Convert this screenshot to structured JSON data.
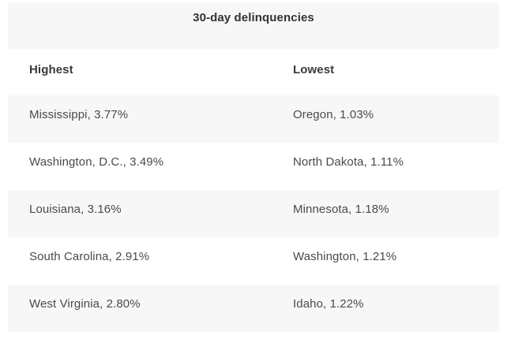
{
  "table": {
    "title": "30-day delinquencies",
    "columns": [
      {
        "label": "Highest"
      },
      {
        "label": "Lowest"
      }
    ],
    "rows": [
      {
        "highest": "Mississippi, 3.77%",
        "lowest": "Oregon, 1.03%"
      },
      {
        "highest": "Washington, D.C., 3.49%",
        "lowest": "North Dakota, 1.11%"
      },
      {
        "highest": "Louisiana, 3.16%",
        "lowest": "Minnesota, 1.18%"
      },
      {
        "highest": "South Carolina, 2.91%",
        "lowest": "Washington, 1.21%"
      },
      {
        "highest": "West Virginia, 2.80%",
        "lowest": "Idaho, 1.22%"
      }
    ]
  },
  "chart_data": {
    "type": "table",
    "title": "30-day delinquencies",
    "columns": [
      "Highest",
      "Lowest"
    ],
    "rows": [
      [
        "Mississippi, 3.77%",
        "Oregon, 1.03%"
      ],
      [
        "Washington, D.C., 3.49%",
        "North Dakota, 1.11%"
      ],
      [
        "Louisiana, 3.16%",
        "Minnesota, 1.18%"
      ],
      [
        "South Carolina, 2.91%",
        "Washington, 1.21%"
      ],
      [
        "West Virginia, 2.80%",
        "Idaho, 1.22%"
      ]
    ],
    "highest_series": [
      {
        "state": "Mississippi",
        "delinquency_pct": 3.77
      },
      {
        "state": "Washington, D.C.",
        "delinquency_pct": 3.49
      },
      {
        "state": "Louisiana",
        "delinquency_pct": 3.16
      },
      {
        "state": "South Carolina",
        "delinquency_pct": 2.91
      },
      {
        "state": "West Virginia",
        "delinquency_pct": 2.8
      }
    ],
    "lowest_series": [
      {
        "state": "Oregon",
        "delinquency_pct": 1.03
      },
      {
        "state": "North Dakota",
        "delinquency_pct": 1.11
      },
      {
        "state": "Minnesota",
        "delinquency_pct": 1.18
      },
      {
        "state": "Washington",
        "delinquency_pct": 1.21
      },
      {
        "state": "Idaho",
        "delinquency_pct": 1.22
      }
    ],
    "layout": {
      "striped_rows": true,
      "stripe_color": "#f7f7f7",
      "grid": false
    }
  },
  "colors": {
    "stripe_bg": "#f7f7f7",
    "page_bg": "#ffffff",
    "title_text": "#333333",
    "header_text": "#3a3a3a",
    "cell_text": "#4a4a4a"
  }
}
